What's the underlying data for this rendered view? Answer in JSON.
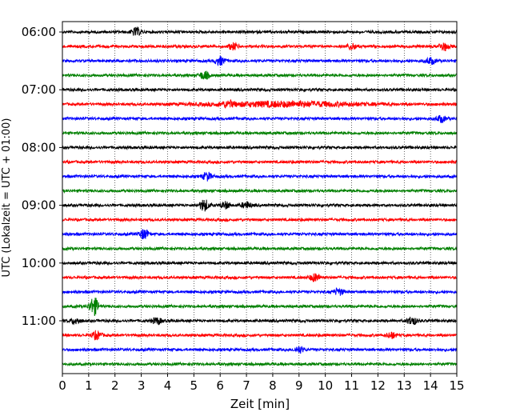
{
  "chart_data": {
    "type": "line",
    "title": "",
    "xlabel": "Zeit  [min]",
    "ylabel": "UTC (Lokalzeit = UTC + 01:00)",
    "xlim": [
      0,
      15
    ],
    "x_ticks": [
      "0",
      "1",
      "2",
      "3",
      "4",
      "5",
      "6",
      "7",
      "8",
      "9",
      "10",
      "11",
      "12",
      "13",
      "14",
      "15"
    ],
    "y_tick_labels": [
      "06:00",
      "07:00",
      "08:00",
      "09:00",
      "10:00",
      "11:00"
    ],
    "grid": "vertical dotted at each minute",
    "trace_start_times": [
      "06:00",
      "06:15",
      "06:30",
      "06:45",
      "07:00",
      "07:15",
      "07:30",
      "07:45",
      "08:00",
      "08:15",
      "08:30",
      "08:45",
      "09:00",
      "09:15",
      "09:30",
      "09:45",
      "10:00",
      "10:15",
      "10:30",
      "10:45",
      "11:00",
      "11:15",
      "11:30",
      "11:45"
    ],
    "trace_colors": [
      "#000000",
      "#ff0000",
      "#0000ff",
      "#008000"
    ],
    "events": [
      {
        "trace": 0,
        "x": 2.8,
        "amp": 5
      },
      {
        "trace": 1,
        "x": 6.5,
        "amp": 4
      },
      {
        "trace": 1,
        "x": 11.0,
        "amp": 4
      },
      {
        "trace": 1,
        "x": 14.5,
        "amp": 5
      },
      {
        "trace": 2,
        "x": 6.0,
        "amp": 5
      },
      {
        "trace": 2,
        "x": 14.0,
        "amp": 4
      },
      {
        "trace": 3,
        "x": 5.4,
        "amp": 5
      },
      {
        "trace": 5,
        "x": 8.5,
        "amp": 3,
        "width": 4
      },
      {
        "trace": 5,
        "x": 6.3,
        "amp": 3
      },
      {
        "trace": 6,
        "x": 14.4,
        "amp": 4
      },
      {
        "trace": 10,
        "x": 5.5,
        "amp": 5
      },
      {
        "trace": 12,
        "x": 5.4,
        "amp": 7
      },
      {
        "trace": 12,
        "x": 7.0,
        "amp": 4
      },
      {
        "trace": 12,
        "x": 6.2,
        "amp": 4
      },
      {
        "trace": 14,
        "x": 3.1,
        "amp": 6
      },
      {
        "trace": 17,
        "x": 9.6,
        "amp": 5
      },
      {
        "trace": 18,
        "x": 10.5,
        "amp": 4
      },
      {
        "trace": 19,
        "x": 1.2,
        "amp": 11
      },
      {
        "trace": 20,
        "x": 3.6,
        "amp": 4
      },
      {
        "trace": 20,
        "x": 13.3,
        "amp": 5
      },
      {
        "trace": 20,
        "x": 0.5,
        "amp": 4
      },
      {
        "trace": 21,
        "x": 1.3,
        "amp": 5
      },
      {
        "trace": 21,
        "x": 12.5,
        "amp": 4
      },
      {
        "trace": 22,
        "x": 9.0,
        "amp": 4
      }
    ]
  }
}
